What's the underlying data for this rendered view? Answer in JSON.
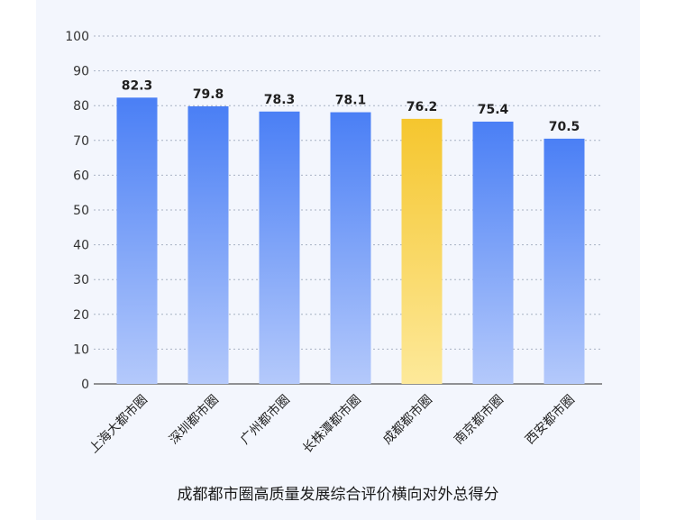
{
  "chart_data": {
    "type": "bar",
    "title": "成都都市圈高质量发展综合评价横向对外总得分",
    "categories": [
      "上海大都市圈",
      "深圳都市圈",
      "广州都市圈",
      "长株潭都市圈",
      "成都都市圈",
      "南京都市圈",
      "西安都市圈"
    ],
    "values": [
      82.3,
      79.8,
      78.3,
      78.1,
      76.2,
      75.4,
      70.5
    ],
    "value_labels": [
      "82.3",
      "79.8",
      "78.3",
      "78.1",
      "76.2",
      "75.4",
      "70.5"
    ],
    "highlight_index": 4,
    "ylim": [
      0,
      100
    ],
    "yticks": [
      0,
      10,
      20,
      30,
      40,
      50,
      60,
      70,
      80,
      90,
      100
    ],
    "grid": true,
    "colors": {
      "bar_top": "#4a7ff5",
      "bar_bottom": "#b4c9fb",
      "highlight_top": "#f5c62e",
      "highlight_bottom": "#fde99a",
      "panel": "#f3f6fd",
      "grid": "#a8b2c4"
    }
  }
}
